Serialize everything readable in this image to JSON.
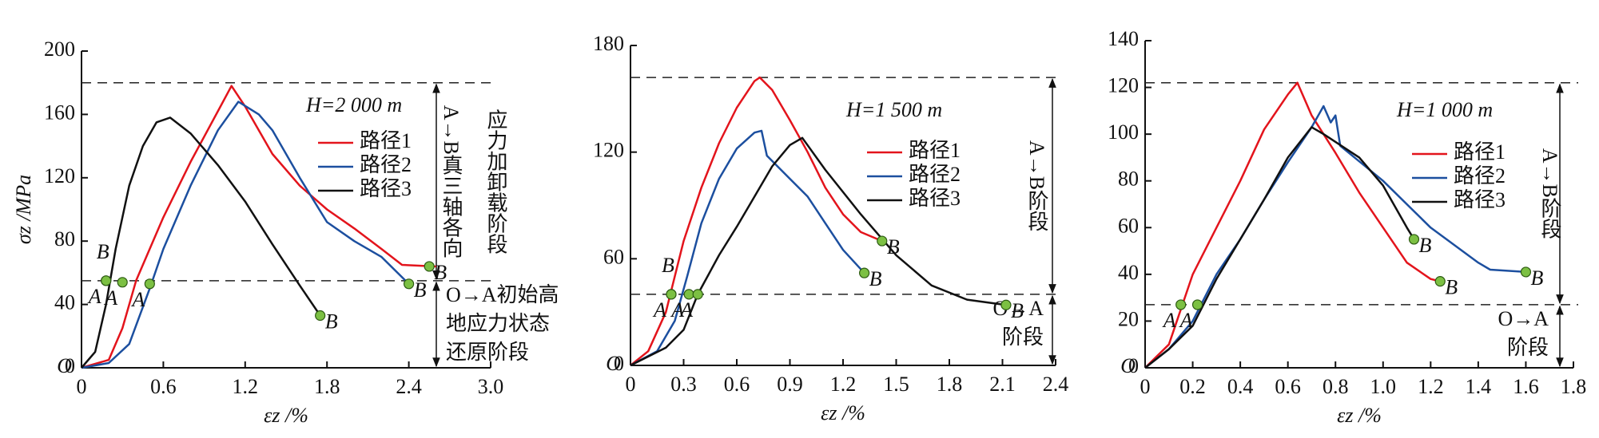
{
  "chart_data": [
    {
      "type": "line",
      "text": "H=2 000 m",
      "ylabel": "σz /MPa",
      "xlabel": "εz /%",
      "origin_label": "O",
      "xlim": [
        0,
        3
      ],
      "xticks": [
        0,
        0.6,
        1.2,
        1.8,
        2.4,
        {
          "value": 3,
          "label": "3.0"
        }
      ],
      "ylim": [
        0,
        200
      ],
      "yticks": [
        0,
        40,
        80,
        120,
        160,
        200
      ],
      "legend": "upper right",
      "hlines": [
        180,
        55
      ],
      "stage_upper": [
        "A→B真三轴各向",
        "应力加卸载阶段"
      ],
      "stage_lower": [
        "O→A初始高",
        "地应力状态",
        "还原阶段"
      ],
      "series": [
        {
          "name": "路径1",
          "color": "#e3141c",
          "x": [
            0,
            0.2,
            0.3,
            0.4,
            0.6,
            0.8,
            1.0,
            1.1,
            1.2,
            1.4,
            1.6,
            1.8,
            2.0,
            2.2,
            2.35,
            2.6
          ],
          "values": [
            0,
            5,
            25,
            55,
            95,
            130,
            162,
            178,
            165,
            135,
            115,
            100,
            88,
            75,
            65,
            64
          ]
        },
        {
          "name": "路径2",
          "color": "#1c4f9f",
          "x": [
            0,
            0.2,
            0.35,
            0.5,
            0.6,
            0.8,
            1.0,
            1.15,
            1.3,
            1.4,
            1.6,
            1.8,
            2.0,
            2.2,
            2.4
          ],
          "values": [
            0,
            3,
            15,
            50,
            75,
            115,
            150,
            168,
            160,
            150,
            120,
            92,
            80,
            70,
            53
          ]
        },
        {
          "name": "路径3",
          "color": "#111111",
          "x": [
            0,
            0.1,
            0.18,
            0.25,
            0.35,
            0.45,
            0.55,
            0.65,
            0.8,
            1.0,
            1.2,
            1.4,
            1.6,
            1.75
          ],
          "values": [
            0,
            10,
            40,
            75,
            115,
            140,
            155,
            158,
            148,
            128,
            105,
            78,
            52,
            33
          ]
        }
      ],
      "points": [
        {
          "label": "A",
          "x": 0.18,
          "y": 55
        },
        {
          "label": "A",
          "x": 0.3,
          "y": 54
        },
        {
          "label": "A",
          "x": 0.5,
          "y": 53
        },
        {
          "label": "B",
          "x": 0.18,
          "y": 55
        },
        {
          "label": "B",
          "x": 2.55,
          "y": 64
        },
        {
          "label": "B",
          "x": 2.4,
          "y": 53
        },
        {
          "label": "B",
          "x": 1.75,
          "y": 33
        }
      ]
    },
    {
      "type": "line",
      "text": "H=1 500 m",
      "xlabel": "εz /%",
      "origin_label": "O",
      "xlim": [
        0,
        2.4
      ],
      "xticks": [
        0,
        0.3,
        0.6,
        0.9,
        1.2,
        1.5,
        1.8,
        2.1,
        2.4
      ],
      "ylim": [
        0,
        180
      ],
      "yticks": [
        0,
        60,
        120,
        180
      ],
      "legend": "upper right",
      "hlines": [
        162,
        40
      ],
      "stage_upper": [
        "A→B阶段"
      ],
      "stage_lower": [
        "O→A",
        "阶段"
      ],
      "series": [
        {
          "name": "路径1",
          "color": "#e3141c",
          "x": [
            0,
            0.1,
            0.2,
            0.25,
            0.3,
            0.4,
            0.5,
            0.6,
            0.7,
            0.73,
            0.8,
            0.9,
            1.0,
            1.1,
            1.2,
            1.3,
            1.42
          ],
          "values": [
            0,
            8,
            30,
            50,
            70,
            100,
            125,
            145,
            160,
            162,
            155,
            138,
            120,
            100,
            85,
            75,
            70
          ]
        },
        {
          "name": "路径2",
          "color": "#1c4f9f",
          "x": [
            0,
            0.15,
            0.25,
            0.32,
            0.4,
            0.5,
            0.6,
            0.7,
            0.74,
            0.77,
            0.9,
            1.0,
            1.1,
            1.2,
            1.32
          ],
          "values": [
            0,
            8,
            25,
            50,
            80,
            105,
            122,
            131,
            132,
            118,
            105,
            95,
            80,
            65,
            52
          ]
        },
        {
          "name": "路径3",
          "color": "#111111",
          "x": [
            0,
            0.2,
            0.3,
            0.38,
            0.5,
            0.6,
            0.7,
            0.8,
            0.9,
            0.97,
            1.1,
            1.3,
            1.5,
            1.7,
            1.9,
            2.12
          ],
          "values": [
            0,
            10,
            20,
            40,
            62,
            78,
            95,
            112,
            124,
            128,
            110,
            85,
            62,
            45,
            37,
            34
          ]
        }
      ],
      "points": [
        {
          "label": "A",
          "x": 0.23,
          "y": 40
        },
        {
          "label": "A",
          "x": 0.33,
          "y": 40
        },
        {
          "label": "A",
          "x": 0.38,
          "y": 40
        },
        {
          "label": "B",
          "x": 0.23,
          "y": 40
        },
        {
          "label": "B",
          "x": 1.32,
          "y": 52
        },
        {
          "label": "B",
          "x": 1.42,
          "y": 70
        },
        {
          "label": "B",
          "x": 2.12,
          "y": 34
        }
      ]
    },
    {
      "type": "line",
      "text": "H=1 000 m",
      "xlabel": "εz /%",
      "origin_label": "O",
      "xlim": [
        0,
        1.8
      ],
      "xticks": [
        0,
        0.2,
        0.4,
        0.6,
        0.8,
        {
          "value": 1,
          "label": "1.0"
        },
        1.2,
        1.4,
        1.6,
        1.8
      ],
      "ylim": [
        0,
        140
      ],
      "yticks": [
        0,
        20,
        40,
        60,
        80,
        100,
        120,
        140
      ],
      "legend": "upper right",
      "hlines": [
        122,
        27
      ],
      "stage_upper": [
        "A→B阶段"
      ],
      "stage_lower": [
        "O→A",
        "阶段"
      ],
      "series": [
        {
          "name": "路径1",
          "color": "#e3141c",
          "x": [
            0,
            0.1,
            0.15,
            0.2,
            0.3,
            0.4,
            0.5,
            0.6,
            0.64,
            0.7,
            0.8,
            0.9,
            1.0,
            1.1,
            1.2,
            1.24
          ],
          "values": [
            0,
            10,
            25,
            40,
            60,
            80,
            102,
            117,
            122,
            108,
            92,
            75,
            60,
            45,
            38,
            37
          ]
        },
        {
          "name": "路径2",
          "color": "#1c4f9f",
          "x": [
            0,
            0.1,
            0.2,
            0.3,
            0.4,
            0.5,
            0.6,
            0.7,
            0.75,
            0.78,
            0.8,
            0.82,
            1.0,
            1.2,
            1.4,
            1.45,
            1.6
          ],
          "values": [
            0,
            8,
            20,
            40,
            55,
            72,
            88,
            103,
            112,
            105,
            108,
            95,
            80,
            60,
            45,
            42,
            41
          ]
        },
        {
          "name": "路径3",
          "color": "#111111",
          "x": [
            0,
            0.1,
            0.2,
            0.3,
            0.4,
            0.5,
            0.6,
            0.7,
            0.75,
            0.9,
            1.0,
            1.1,
            1.13
          ],
          "values": [
            0,
            8,
            18,
            38,
            55,
            72,
            90,
            103,
            100,
            90,
            78,
            60,
            55
          ]
        }
      ],
      "points": [
        {
          "label": "A",
          "x": 0.15,
          "y": 27
        },
        {
          "label": "A",
          "x": 0.22,
          "y": 27
        },
        {
          "label": "B",
          "x": 1.13,
          "y": 55
        },
        {
          "label": "B",
          "x": 1.24,
          "y": 37
        },
        {
          "label": "B",
          "x": 1.6,
          "y": 41
        }
      ]
    }
  ]
}
